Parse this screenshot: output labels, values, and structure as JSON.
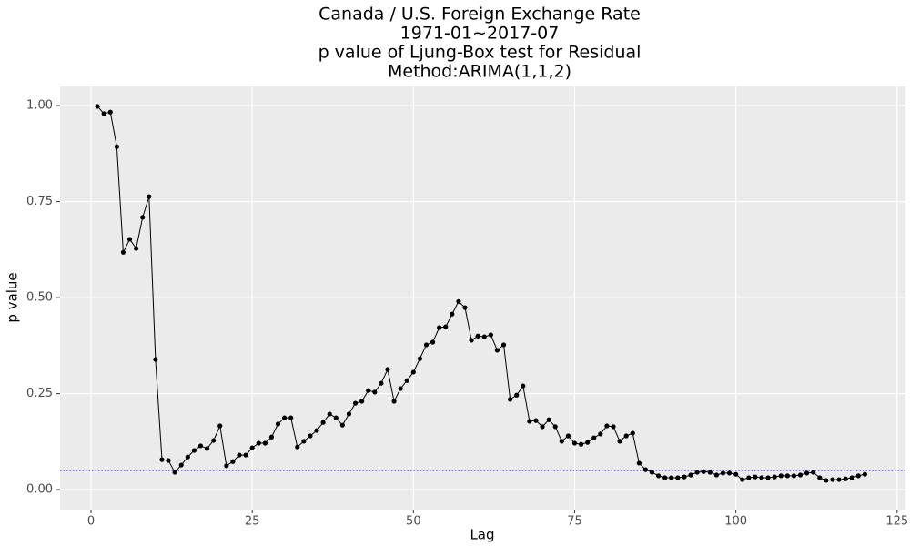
{
  "chart_data": {
    "type": "line",
    "title": [
      "Canada / U.S. Foreign Exchange Rate",
      "1971-01~2017-07",
      "p value of Ljung-Box test for Residual",
      "Method:ARIMA(1,1,2)"
    ],
    "x_label": "Lag",
    "y_label": "p value",
    "x": [
      1,
      2,
      3,
      4,
      5,
      6,
      7,
      8,
      9,
      10,
      11,
      12,
      13,
      14,
      15,
      16,
      17,
      18,
      19,
      20,
      21,
      22,
      23,
      24,
      25,
      26,
      27,
      28,
      29,
      30,
      31,
      32,
      33,
      34,
      35,
      36,
      37,
      38,
      39,
      40,
      41,
      42,
      43,
      44,
      45,
      46,
      47,
      48,
      49,
      50,
      51,
      52,
      53,
      54,
      55,
      56,
      57,
      58,
      59,
      60,
      61,
      62,
      63,
      64,
      65,
      66,
      67,
      68,
      69,
      70,
      71,
      72,
      73,
      74,
      75,
      76,
      77,
      78,
      79,
      80,
      81,
      82,
      83,
      84,
      85,
      86,
      87,
      88,
      89,
      90,
      91,
      92,
      93,
      94,
      95,
      96,
      97,
      98,
      99,
      100,
      101,
      102,
      103,
      104,
      105,
      106,
      107,
      108,
      109,
      110,
      111,
      112,
      113,
      114,
      115,
      116,
      117,
      118,
      119,
      120
    ],
    "values": [
      0.998,
      0.979,
      0.983,
      0.893,
      0.618,
      0.652,
      0.628,
      0.709,
      0.763,
      0.339,
      0.078,
      0.076,
      0.045,
      0.064,
      0.085,
      0.102,
      0.114,
      0.107,
      0.128,
      0.166,
      0.062,
      0.073,
      0.09,
      0.09,
      0.109,
      0.121,
      0.121,
      0.137,
      0.171,
      0.187,
      0.187,
      0.111,
      0.126,
      0.14,
      0.154,
      0.175,
      0.197,
      0.187,
      0.168,
      0.197,
      0.225,
      0.23,
      0.258,
      0.254,
      0.277,
      0.313,
      0.23,
      0.263,
      0.284,
      0.306,
      0.341,
      0.377,
      0.384,
      0.422,
      0.424,
      0.457,
      0.49,
      0.474,
      0.389,
      0.4,
      0.398,
      0.403,
      0.363,
      0.377,
      0.235,
      0.246,
      0.27,
      0.178,
      0.18,
      0.164,
      0.182,
      0.164,
      0.126,
      0.14,
      0.121,
      0.118,
      0.123,
      0.135,
      0.145,
      0.166,
      0.164,
      0.126,
      0.14,
      0.147,
      0.069,
      0.052,
      0.045,
      0.036,
      0.031,
      0.031,
      0.031,
      0.033,
      0.038,
      0.045,
      0.047,
      0.045,
      0.038,
      0.043,
      0.043,
      0.04,
      0.026,
      0.031,
      0.033,
      0.031,
      0.031,
      0.033,
      0.036,
      0.036,
      0.036,
      0.038,
      0.043,
      0.045,
      0.031,
      0.024,
      0.026,
      0.026,
      0.028,
      0.031,
      0.036,
      0.04
    ],
    "color": "#000000",
    "hline": {
      "value": 0.05,
      "color": "#0000ff"
    },
    "xlim": [
      -4.8,
      126.3
    ],
    "ylim": [
      -0.052,
      1.05
    ],
    "xticks": [
      0,
      25,
      50,
      75,
      100,
      125
    ],
    "yticks": [
      {
        "value": 0,
        "label": "0.00"
      },
      {
        "value": 0.25,
        "label": "0.25"
      },
      {
        "value": 0.5,
        "label": "0.50"
      },
      {
        "value": 0.75,
        "label": "0.75"
      },
      {
        "value": 1,
        "label": "1.00"
      }
    ],
    "grid": true
  }
}
